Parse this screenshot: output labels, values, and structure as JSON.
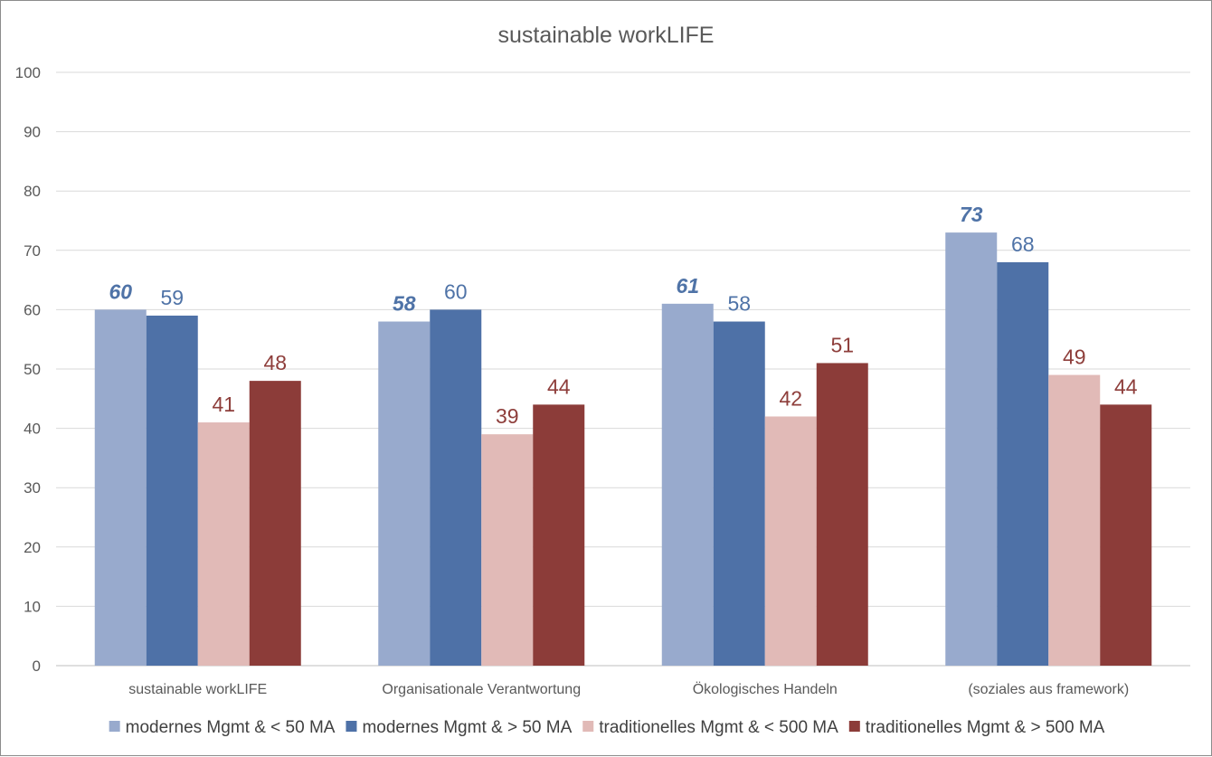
{
  "chart_data": {
    "type": "bar",
    "title": "sustainable workLIFE",
    "xlabel": "",
    "ylabel": "",
    "ylim": [
      0,
      100
    ],
    "ytick_step": 10,
    "grid": true,
    "legend_position": "bottom",
    "categories": [
      "sustainable workLIFE",
      "Organisationale Verantwortung",
      "Ökologisches Handeln",
      "(soziales aus framework)"
    ],
    "series": [
      {
        "name": "modernes Mgmt & < 50 MA",
        "values": [
          60,
          58,
          61,
          73
        ],
        "color": "#98aacd",
        "label_color": "#4f73a7",
        "label_italic": true
      },
      {
        "name": "modernes Mgmt & > 50 MA",
        "values": [
          59,
          60,
          58,
          68
        ],
        "color": "#4e71a7",
        "label_color": "#4f73a7",
        "label_italic": false
      },
      {
        "name": "traditionelles Mgmt & < 500 MA",
        "values": [
          41,
          39,
          42,
          49
        ],
        "color": "#e1bab7",
        "label_color": "#8e3e3b",
        "label_italic": false
      },
      {
        "name": "traditionelles Mgmt & > 500 MA",
        "values": [
          48,
          44,
          51,
          44
        ],
        "color": "#8c3c39",
        "label_color": "#8e3e3b",
        "label_italic": false
      }
    ]
  }
}
